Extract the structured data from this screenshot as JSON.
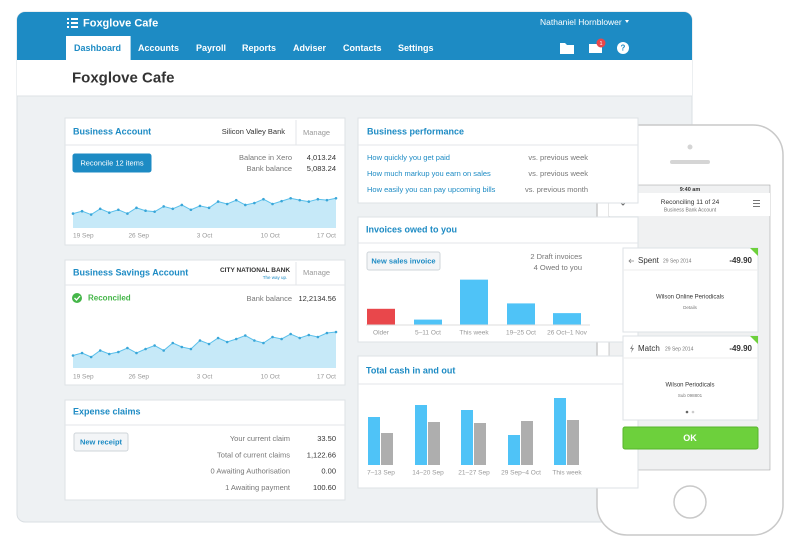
{
  "app": {
    "brand": "Foxglove Cafe",
    "user": "Nathaniel Hornblower",
    "notification_count": "1",
    "nav": [
      "Dashboard",
      "Accounts",
      "Payroll",
      "Reports",
      "Adviser",
      "Contacts",
      "Settings"
    ],
    "active_nav": 0
  },
  "page_title": "Foxglove Cafe",
  "business_account": {
    "title": "Business Account",
    "bank": "Silicon Valley Bank",
    "manage": "Manage",
    "button": "Reconcile 12 items",
    "rows": [
      {
        "label": "Balance in Xero",
        "value": "4,013.24"
      },
      {
        "label": "Bank balance",
        "value": "5,083.24"
      }
    ],
    "chart": {
      "type": "area",
      "color": "#5bc0eb",
      "ylim": [
        0,
        100
      ],
      "x_labels": [
        "19 Sep",
        "26 Sep",
        "3 Oct",
        "10 Oct",
        "17 Oct"
      ],
      "values": [
        30,
        35,
        28,
        40,
        32,
        38,
        30,
        42,
        36,
        34,
        45,
        40,
        48,
        38,
        46,
        42,
        55,
        50,
        58,
        48,
        52,
        60,
        50,
        56,
        62,
        58,
        55,
        60,
        58,
        62
      ]
    }
  },
  "savings_account": {
    "title": "Business Savings Account",
    "bank": "CITY NATIONAL BANK",
    "bank_tagline": "The way up.",
    "manage": "Manage",
    "status": "Reconciled",
    "rows": [
      {
        "label": "Bank balance",
        "value": "12,2134.56"
      }
    ],
    "chart": {
      "type": "area",
      "color": "#5bc0eb",
      "ylim": [
        0,
        100
      ],
      "x_labels": [
        "19 Sep",
        "26 Sep",
        "3 Oct",
        "10 Oct",
        "17 Oct"
      ],
      "values": [
        25,
        30,
        22,
        35,
        28,
        32,
        40,
        30,
        38,
        45,
        35,
        50,
        42,
        38,
        55,
        48,
        60,
        52,
        58,
        65,
        55,
        50,
        62,
        58,
        68,
        60,
        66,
        62,
        70,
        72
      ]
    }
  },
  "expense_claims": {
    "title": "Expense claims",
    "button": "New receipt",
    "rows": [
      {
        "label": "Your current claim",
        "value": "33.50"
      },
      {
        "label": "Total of current claims",
        "value": "1,122.66"
      },
      {
        "label": "0 Awaiting Authorisation",
        "value": "0.00"
      },
      {
        "label": "1 Awaiting payment",
        "value": "100.60"
      }
    ]
  },
  "business_performance": {
    "title": "Business performance",
    "rows": [
      {
        "link": "How quickly you get paid",
        "compare": "vs. previous week"
      },
      {
        "link": "How much markup you earn on sales",
        "compare": "vs. previous week"
      },
      {
        "link": "How easily you can pay upcoming bills",
        "compare": "vs. previous month"
      }
    ]
  },
  "invoices": {
    "title": "Invoices owed to you",
    "button": "New sales invoice",
    "summary": [
      "2 Draft invoices",
      "4 Owed to you"
    ],
    "chart": {
      "type": "bar",
      "ylim": [
        0,
        50
      ],
      "categories": [
        "Older",
        "5–11 Oct",
        "This week",
        "19–25 Oct",
        "26 Oct–1 Nov"
      ],
      "values": [
        15,
        5,
        42,
        20,
        11
      ],
      "colors": [
        "#e9474b",
        "#4fc3f7",
        "#4fc3f7",
        "#4fc3f7",
        "#4fc3f7"
      ]
    }
  },
  "cash": {
    "title": "Total cash in and out",
    "chart": {
      "type": "grouped-bar",
      "ylim": [
        0,
        70
      ],
      "categories": [
        "7–13 Sep",
        "14–20 Sep",
        "21–27 Sep",
        "29 Sep–4 Oct",
        "This week"
      ],
      "series": [
        {
          "color": "#4fc3f7",
          "values": [
            48,
            60,
            55,
            30,
            67
          ]
        },
        {
          "color": "#aeaeae",
          "values": [
            32,
            43,
            42,
            44,
            45
          ]
        }
      ]
    }
  },
  "phone": {
    "time": "9:40 am",
    "title": "Reconciling 11 of 24",
    "subtitle": "Business Bank Account",
    "cards": [
      {
        "type": "Spent",
        "date": "29 Sep 2014",
        "amount": "-49.90",
        "payee": "Wilson Online Periodicals",
        "note": "Details"
      },
      {
        "type": "Match",
        "date": "29 Sep 2014",
        "amount": "-49.90",
        "payee": "Wilson Periodicals",
        "note": "Sub 098801"
      }
    ],
    "button": "OK"
  }
}
